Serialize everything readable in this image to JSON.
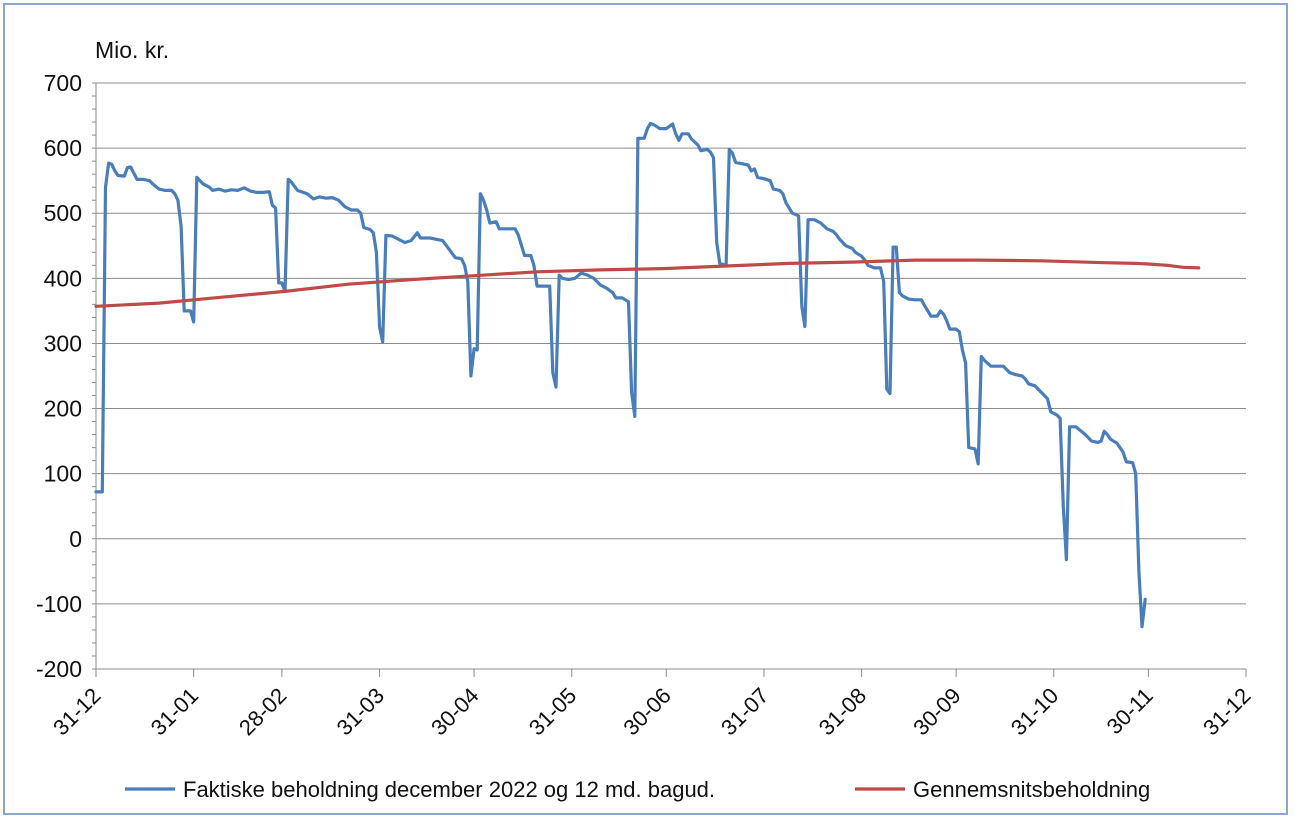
{
  "chart_data": {
    "type": "line",
    "ylabel": "Mio. kr.",
    "ylim": [
      -200,
      700
    ],
    "yticks": [
      700,
      600,
      500,
      400,
      300,
      200,
      100,
      0,
      -100,
      -200
    ],
    "xlim": [
      0,
      365
    ],
    "xticks": [
      {
        "day": 0,
        "label": "31-12"
      },
      {
        "day": 31,
        "label": "31-01"
      },
      {
        "day": 59,
        "label": "28-02"
      },
      {
        "day": 90,
        "label": "31-03"
      },
      {
        "day": 120,
        "label": "30-04"
      },
      {
        "day": 151,
        "label": "31-05"
      },
      {
        "day": 181,
        "label": "30-06"
      },
      {
        "day": 212,
        "label": "31-07"
      },
      {
        "day": 243,
        "label": "31-08"
      },
      {
        "day": 273,
        "label": "30-09"
      },
      {
        "day": 304,
        "label": "31-10"
      },
      {
        "day": 334,
        "label": "30-11"
      },
      {
        "day": 365,
        "label": "31-12"
      }
    ],
    "grid": true,
    "legend": "bottom",
    "series": [
      {
        "name": "Faktiske beholdning december 2022 og 12 md. bagud.",
        "color": "#4a7ebb",
        "points": [
          [
            0,
            72
          ],
          [
            2,
            72
          ],
          [
            3,
            540
          ],
          [
            4,
            577
          ],
          [
            5,
            575
          ],
          [
            6,
            565
          ],
          [
            7,
            558
          ],
          [
            9,
            557
          ],
          [
            10,
            570
          ],
          [
            11,
            571
          ],
          [
            13,
            552
          ],
          [
            15,
            552
          ],
          [
            17,
            550
          ],
          [
            18,
            545
          ],
          [
            20,
            537
          ],
          [
            22,
            535
          ],
          [
            24,
            535
          ],
          [
            25,
            530
          ],
          [
            26,
            520
          ],
          [
            27,
            480
          ],
          [
            28,
            350
          ],
          [
            29,
            350
          ],
          [
            30,
            350
          ],
          [
            31,
            333
          ],
          [
            32,
            555
          ],
          [
            34,
            545
          ],
          [
            36,
            540
          ],
          [
            37,
            535
          ],
          [
            39,
            537
          ],
          [
            41,
            534
          ],
          [
            43,
            536
          ],
          [
            45,
            535
          ],
          [
            47,
            539
          ],
          [
            49,
            534
          ],
          [
            51,
            532
          ],
          [
            53,
            532
          ],
          [
            55,
            533
          ],
          [
            56,
            512
          ],
          [
            57,
            508
          ],
          [
            58,
            393
          ],
          [
            59,
            393
          ],
          [
            60,
            380
          ],
          [
            61,
            552
          ],
          [
            62,
            548
          ],
          [
            64,
            535
          ],
          [
            67,
            530
          ],
          [
            69,
            522
          ],
          [
            71,
            525
          ],
          [
            73,
            523
          ],
          [
            75,
            524
          ],
          [
            77,
            520
          ],
          [
            79,
            510
          ],
          [
            81,
            505
          ],
          [
            83,
            505
          ],
          [
            84,
            500
          ],
          [
            85,
            478
          ],
          [
            87,
            475
          ],
          [
            88,
            470
          ],
          [
            89,
            440
          ],
          [
            90,
            325
          ],
          [
            91,
            302
          ],
          [
            92,
            466
          ],
          [
            94,
            465
          ],
          [
            96,
            460
          ],
          [
            98,
            455
          ],
          [
            100,
            458
          ],
          [
            102,
            470
          ],
          [
            103,
            462
          ],
          [
            106,
            462
          ],
          [
            108,
            460
          ],
          [
            110,
            458
          ],
          [
            112,
            445
          ],
          [
            114,
            432
          ],
          [
            116,
            430
          ],
          [
            117,
            420
          ],
          [
            118,
            395
          ],
          [
            119,
            250
          ],
          [
            120,
            292
          ],
          [
            121,
            290
          ],
          [
            122,
            530
          ],
          [
            123,
            520
          ],
          [
            124,
            505
          ],
          [
            125,
            485
          ],
          [
            127,
            487
          ],
          [
            128,
            476
          ],
          [
            130,
            476
          ],
          [
            133,
            476
          ],
          [
            134,
            467
          ],
          [
            136,
            435
          ],
          [
            138,
            435
          ],
          [
            139,
            420
          ],
          [
            140,
            388
          ],
          [
            142,
            388
          ],
          [
            144,
            388
          ],
          [
            145,
            255
          ],
          [
            146,
            233
          ],
          [
            147,
            405
          ],
          [
            148,
            400
          ],
          [
            150,
            398
          ],
          [
            152,
            400
          ],
          [
            154,
            408
          ],
          [
            156,
            405
          ],
          [
            158,
            400
          ],
          [
            160,
            390
          ],
          [
            162,
            385
          ],
          [
            164,
            378
          ],
          [
            165,
            370
          ],
          [
            167,
            370
          ],
          [
            169,
            364
          ],
          [
            170,
            225
          ],
          [
            171,
            188
          ],
          [
            172,
            615
          ],
          [
            174,
            615
          ],
          [
            175,
            630
          ],
          [
            176,
            638
          ],
          [
            177,
            636
          ],
          [
            179,
            630
          ],
          [
            181,
            630
          ],
          [
            183,
            637
          ],
          [
            184,
            622
          ],
          [
            185,
            612
          ],
          [
            186,
            622
          ],
          [
            188,
            622
          ],
          [
            189,
            614
          ],
          [
            191,
            605
          ],
          [
            192,
            596
          ],
          [
            194,
            598
          ],
          [
            195,
            594
          ],
          [
            196,
            585
          ],
          [
            197,
            455
          ],
          [
            198,
            423
          ],
          [
            200,
            420
          ],
          [
            201,
            598
          ],
          [
            202,
            592
          ],
          [
            203,
            578
          ],
          [
            205,
            576
          ],
          [
            207,
            574
          ],
          [
            208,
            565
          ],
          [
            209,
            568
          ],
          [
            210,
            555
          ],
          [
            212,
            553
          ],
          [
            214,
            550
          ],
          [
            215,
            537
          ],
          [
            217,
            535
          ],
          [
            218,
            530
          ],
          [
            219,
            516
          ],
          [
            221,
            500
          ],
          [
            223,
            496
          ],
          [
            224,
            357
          ],
          [
            225,
            326
          ],
          [
            226,
            490
          ],
          [
            228,
            490
          ],
          [
            230,
            485
          ],
          [
            232,
            476
          ],
          [
            234,
            472
          ],
          [
            235,
            467
          ],
          [
            236,
            460
          ],
          [
            238,
            450
          ],
          [
            240,
            446
          ],
          [
            241,
            440
          ],
          [
            243,
            434
          ],
          [
            244,
            428
          ],
          [
            245,
            420
          ],
          [
            247,
            416
          ],
          [
            249,
            416
          ],
          [
            250,
            395
          ],
          [
            251,
            230
          ],
          [
            252,
            223
          ],
          [
            253,
            448
          ],
          [
            254,
            448
          ],
          [
            255,
            378
          ],
          [
            256,
            373
          ],
          [
            258,
            368
          ],
          [
            260,
            367
          ],
          [
            262,
            367
          ],
          [
            263,
            358
          ],
          [
            265,
            342
          ],
          [
            267,
            342
          ],
          [
            268,
            350
          ],
          [
            269,
            345
          ],
          [
            270,
            335
          ],
          [
            271,
            322
          ],
          [
            273,
            322
          ],
          [
            274,
            318
          ],
          [
            275,
            290
          ],
          [
            276,
            270
          ],
          [
            277,
            140
          ],
          [
            279,
            138
          ],
          [
            280,
            115
          ],
          [
            281,
            280
          ],
          [
            282,
            274
          ],
          [
            284,
            265
          ],
          [
            286,
            265
          ],
          [
            288,
            265
          ],
          [
            290,
            255
          ],
          [
            292,
            252
          ],
          [
            294,
            250
          ],
          [
            295,
            245
          ],
          [
            296,
            238
          ],
          [
            298,
            235
          ],
          [
            300,
            225
          ],
          [
            302,
            215
          ],
          [
            303,
            195
          ],
          [
            305,
            190
          ],
          [
            306,
            185
          ],
          [
            307,
            50
          ],
          [
            308,
            -32
          ],
          [
            309,
            172
          ],
          [
            311,
            172
          ],
          [
            313,
            164
          ],
          [
            314,
            160
          ],
          [
            316,
            150
          ],
          [
            318,
            148
          ],
          [
            319,
            150
          ],
          [
            320,
            165
          ],
          [
            321,
            160
          ],
          [
            322,
            153
          ],
          [
            324,
            147
          ],
          [
            325,
            140
          ],
          [
            326,
            133
          ],
          [
            327,
            118
          ],
          [
            329,
            117
          ],
          [
            330,
            100
          ],
          [
            331,
            -50
          ],
          [
            332,
            -135
          ],
          [
            333,
            -93
          ]
        ]
      },
      {
        "name": "Gennemsnitsbeholdning",
        "color": "#be4b48",
        "points": [
          [
            0,
            357
          ],
          [
            20,
            362
          ],
          [
            40,
            371
          ],
          [
            60,
            380
          ],
          [
            80,
            391
          ],
          [
            100,
            398
          ],
          [
            120,
            404
          ],
          [
            140,
            410
          ],
          [
            160,
            413
          ],
          [
            180,
            415
          ],
          [
            200,
            419
          ],
          [
            220,
            423
          ],
          [
            240,
            425
          ],
          [
            260,
            428
          ],
          [
            280,
            428
          ],
          [
            300,
            427
          ],
          [
            320,
            424
          ],
          [
            330,
            423
          ],
          [
            334,
            422
          ],
          [
            340,
            420
          ],
          [
            345,
            417
          ],
          [
            350,
            416
          ]
        ]
      }
    ]
  }
}
